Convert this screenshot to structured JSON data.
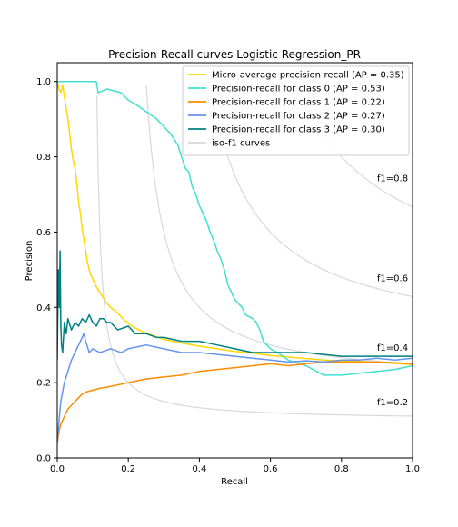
{
  "chart_data": {
    "type": "line",
    "title": "Precision-Recall curves Logistic Regression_PR",
    "xlabel": "Recall",
    "ylabel": "Precision",
    "xlim": [
      0,
      1
    ],
    "ylim": [
      0,
      1.05
    ],
    "x_ticks": [
      0,
      0.2,
      0.4,
      0.6,
      0.8,
      1.0
    ],
    "x_tick_labels": [
      "0.0",
      "0.2",
      "0.4",
      "0.6",
      "0.8",
      "1.0"
    ],
    "y_ticks": [
      0,
      0.2,
      0.4,
      0.6,
      0.8,
      1.0
    ],
    "y_tick_labels": [
      "0.0",
      "0.2",
      "0.4",
      "0.6",
      "0.8",
      "1.0"
    ],
    "grid": false,
    "legend_placement": "top-right",
    "iso_f1": {
      "legend": "iso-f1 curves",
      "color": "#d8d8d8",
      "values": [
        0.2,
        0.4,
        0.6,
        0.8
      ],
      "labels": [
        "f1=0.2",
        "f1=0.4",
        "f1=0.6",
        "f1=0.8"
      ],
      "label_y": [
        0.14,
        0.285,
        0.47,
        0.735
      ]
    },
    "series": [
      {
        "name": "Micro-average precision-recall (AP = 0.35)",
        "color": "#ffd700",
        "x": [
          0.0,
          0.005,
          0.01,
          0.015,
          0.02,
          0.025,
          0.03,
          0.035,
          0.04,
          0.045,
          0.05,
          0.055,
          0.06,
          0.065,
          0.07,
          0.075,
          0.08,
          0.085,
          0.09,
          0.095,
          0.1,
          0.11,
          0.12,
          0.13,
          0.14,
          0.15,
          0.17,
          0.19,
          0.21,
          0.24,
          0.27,
          0.3,
          0.35,
          0.4,
          0.45,
          0.5,
          0.55,
          0.6,
          0.65,
          0.7,
          0.75,
          0.8,
          0.85,
          0.9,
          0.95,
          1.0
        ],
        "y": [
          1.0,
          0.98,
          0.97,
          0.99,
          0.96,
          0.93,
          0.9,
          0.86,
          0.82,
          0.79,
          0.77,
          0.73,
          0.68,
          0.65,
          0.61,
          0.58,
          0.55,
          0.52,
          0.5,
          0.485,
          0.475,
          0.455,
          0.44,
          0.425,
          0.41,
          0.4,
          0.385,
          0.365,
          0.35,
          0.335,
          0.325,
          0.315,
          0.305,
          0.297,
          0.29,
          0.283,
          0.278,
          0.272,
          0.268,
          0.264,
          0.26,
          0.258,
          0.256,
          0.254,
          0.251,
          0.248
        ]
      },
      {
        "name": "Precision-recall for class 0 (AP = 0.53)",
        "color": "#40e0d0",
        "x": [
          0.0,
          0.05,
          0.11,
          0.115,
          0.14,
          0.18,
          0.2,
          0.22,
          0.25,
          0.28,
          0.3,
          0.32,
          0.34,
          0.35,
          0.36,
          0.37,
          0.38,
          0.39,
          0.4,
          0.41,
          0.42,
          0.43,
          0.44,
          0.45,
          0.46,
          0.47,
          0.48,
          0.5,
          0.52,
          0.53,
          0.55,
          0.56,
          0.57,
          0.58,
          0.6,
          0.62,
          0.65,
          0.7,
          0.75,
          0.8,
          0.85,
          0.9,
          0.95,
          1.0
        ],
        "y": [
          1.0,
          1.0,
          1.0,
          0.97,
          0.98,
          0.97,
          0.95,
          0.94,
          0.92,
          0.9,
          0.88,
          0.86,
          0.83,
          0.8,
          0.77,
          0.76,
          0.72,
          0.7,
          0.67,
          0.65,
          0.63,
          0.6,
          0.58,
          0.55,
          0.53,
          0.5,
          0.46,
          0.42,
          0.4,
          0.38,
          0.37,
          0.36,
          0.34,
          0.31,
          0.29,
          0.28,
          0.26,
          0.245,
          0.22,
          0.22,
          0.225,
          0.23,
          0.235,
          0.245
        ]
      },
      {
        "name": "Precision-recall for class 1 (AP = 0.22)",
        "color": "#ff8c00",
        "x": [
          0.0,
          0.005,
          0.01,
          0.02,
          0.03,
          0.04,
          0.05,
          0.06,
          0.07,
          0.08,
          0.1,
          0.12,
          0.15,
          0.2,
          0.25,
          0.3,
          0.35,
          0.4,
          0.45,
          0.5,
          0.55,
          0.6,
          0.65,
          0.7,
          0.75,
          0.8,
          0.85,
          0.9,
          0.95,
          1.0
        ],
        "y": [
          0.04,
          0.07,
          0.09,
          0.11,
          0.13,
          0.14,
          0.15,
          0.16,
          0.17,
          0.175,
          0.18,
          0.185,
          0.19,
          0.2,
          0.21,
          0.215,
          0.22,
          0.23,
          0.235,
          0.24,
          0.245,
          0.25,
          0.245,
          0.25,
          0.255,
          0.255,
          0.255,
          0.255,
          0.253,
          0.25
        ]
      },
      {
        "name": "Precision-recall for class 2 (AP = 0.27)",
        "color": "#6495ed",
        "x": [
          0.0,
          0.005,
          0.01,
          0.02,
          0.03,
          0.04,
          0.05,
          0.06,
          0.07,
          0.075,
          0.08,
          0.09,
          0.1,
          0.12,
          0.15,
          0.18,
          0.2,
          0.25,
          0.3,
          0.35,
          0.4,
          0.45,
          0.5,
          0.55,
          0.6,
          0.65,
          0.7,
          0.75,
          0.8,
          0.85,
          0.9,
          0.95,
          1.0
        ],
        "y": [
          0.04,
          0.1,
          0.15,
          0.2,
          0.23,
          0.26,
          0.28,
          0.3,
          0.32,
          0.33,
          0.31,
          0.28,
          0.29,
          0.28,
          0.29,
          0.28,
          0.29,
          0.3,
          0.29,
          0.28,
          0.28,
          0.275,
          0.27,
          0.265,
          0.26,
          0.255,
          0.258,
          0.255,
          0.26,
          0.26,
          0.265,
          0.26,
          0.265
        ]
      },
      {
        "name": "Precision-recall for class 3 (AP = 0.30)",
        "color": "#008080",
        "x": [
          0.0,
          0.003,
          0.006,
          0.008,
          0.01,
          0.012,
          0.015,
          0.02,
          0.025,
          0.03,
          0.04,
          0.05,
          0.06,
          0.07,
          0.08,
          0.09,
          0.1,
          0.11,
          0.12,
          0.13,
          0.14,
          0.15,
          0.17,
          0.2,
          0.22,
          0.25,
          0.28,
          0.3,
          0.35,
          0.4,
          0.45,
          0.5,
          0.55,
          0.6,
          0.65,
          0.7,
          0.75,
          0.8,
          0.85,
          0.9,
          0.95,
          1.0
        ],
        "y": [
          0.26,
          0.5,
          0.4,
          0.55,
          0.35,
          0.3,
          0.28,
          0.36,
          0.33,
          0.37,
          0.34,
          0.36,
          0.35,
          0.37,
          0.36,
          0.38,
          0.36,
          0.35,
          0.37,
          0.37,
          0.36,
          0.36,
          0.34,
          0.35,
          0.33,
          0.33,
          0.32,
          0.32,
          0.31,
          0.31,
          0.3,
          0.29,
          0.28,
          0.28,
          0.28,
          0.28,
          0.275,
          0.27,
          0.27,
          0.27,
          0.27,
          0.27
        ]
      }
    ]
  }
}
